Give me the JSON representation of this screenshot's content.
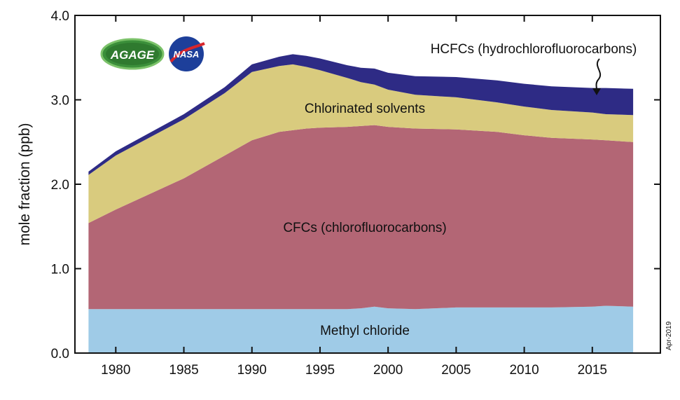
{
  "chart_data": {
    "type": "area",
    "stacked": true,
    "ylabel": "mole fraction (ppb)",
    "xlabel": "",
    "xlim": [
      1977,
      2020
    ],
    "ylim": [
      0,
      4
    ],
    "x_ticks": [
      1980,
      1985,
      1990,
      1995,
      2000,
      2005,
      2010,
      2015
    ],
    "y_ticks": [
      "0.0",
      "1.0",
      "2.0",
      "3.0",
      "4.0"
    ],
    "grid": false,
    "x": [
      1978,
      1980,
      1985,
      1988,
      1990,
      1992,
      1993,
      1994,
      1995,
      1997,
      1998,
      1999,
      2000,
      2002,
      2005,
      2008,
      2010,
      2012,
      2015,
      2016,
      2018
    ],
    "series": [
      {
        "name": "Methyl chloride",
        "color": "#9fcbe7",
        "values": [
          0.52,
          0.52,
          0.52,
          0.52,
          0.52,
          0.52,
          0.52,
          0.52,
          0.52,
          0.52,
          0.53,
          0.55,
          0.53,
          0.52,
          0.54,
          0.54,
          0.54,
          0.54,
          0.55,
          0.56,
          0.55
        ]
      },
      {
        "name": "CFCs (chlorofluorocarbons)",
        "color": "#b36675",
        "values": [
          1.02,
          1.18,
          1.55,
          1.82,
          2.0,
          2.1,
          2.12,
          2.14,
          2.15,
          2.16,
          2.16,
          2.15,
          2.15,
          2.14,
          2.11,
          2.08,
          2.04,
          2.01,
          1.98,
          1.96,
          1.95
        ]
      },
      {
        "name": "Chlorinated solvents",
        "color": "#d9cb7e",
        "values": [
          0.57,
          0.64,
          0.7,
          0.74,
          0.81,
          0.78,
          0.78,
          0.73,
          0.68,
          0.58,
          0.52,
          0.48,
          0.44,
          0.4,
          0.38,
          0.35,
          0.34,
          0.33,
          0.32,
          0.31,
          0.32
        ]
      },
      {
        "name": "HCFCs (hydrochlorofluorocarbons)",
        "color": "#2e2b85",
        "values": [
          0.04,
          0.05,
          0.06,
          0.07,
          0.09,
          0.11,
          0.12,
          0.13,
          0.14,
          0.15,
          0.17,
          0.19,
          0.2,
          0.22,
          0.24,
          0.26,
          0.27,
          0.28,
          0.29,
          0.31,
          0.31
        ]
      }
    ],
    "annotations": {
      "date_stamp": "Apr-2019"
    }
  },
  "logos": {
    "agage": {
      "text": "AGAGE",
      "color": "#2e8b3c"
    },
    "nasa": {
      "text": "NASA",
      "color": "#1d3f9a"
    }
  }
}
